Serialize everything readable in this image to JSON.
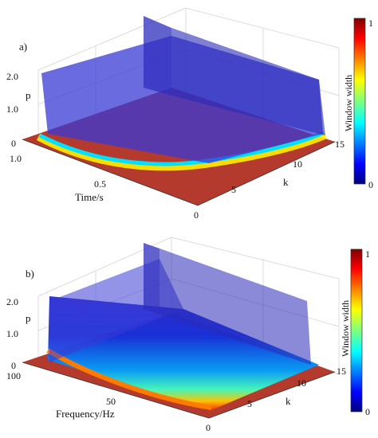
{
  "chart_data": [
    {
      "type": "surface3d",
      "panel_label": "a)",
      "x_axis_label": "Time/s",
      "x_ticks": [
        "1.0",
        "0.5",
        "0"
      ],
      "y_axis_label": "k",
      "y_ticks": [
        "5",
        "10",
        "15"
      ],
      "z_axis_label": "p",
      "z_ticks": [
        "0",
        "1.0",
        "2.0"
      ],
      "xlim": [
        0,
        1.0
      ],
      "ylim": [
        0,
        15
      ],
      "zlim": [
        0,
        2.0
      ],
      "colorbar": {
        "label": "Window width",
        "ticks": [
          "1",
          "0"
        ],
        "range": [
          0,
          1
        ]
      },
      "grid": true
    },
    {
      "type": "surface3d",
      "panel_label": "b)",
      "x_axis_label": "Frequency/Hz",
      "x_ticks": [
        "100",
        "50",
        "0"
      ],
      "y_axis_label": "k",
      "y_ticks": [
        "5",
        "10",
        "15"
      ],
      "z_axis_label": "p",
      "z_ticks": [
        "0",
        "1.0",
        "2.0"
      ],
      "xlim": [
        0,
        100
      ],
      "ylim": [
        0,
        15
      ],
      "zlim": [
        0,
        2.0
      ],
      "colorbar": {
        "label": "Window width",
        "ticks": [
          "1",
          "0"
        ],
        "range": [
          0,
          1
        ]
      },
      "grid": true
    }
  ],
  "colors": {
    "jet_low": "#00007f",
    "jet_mid": "#7fff7f",
    "jet_high": "#7f0000",
    "floor": "#b03a2e",
    "wall": "#3c3cc8"
  }
}
